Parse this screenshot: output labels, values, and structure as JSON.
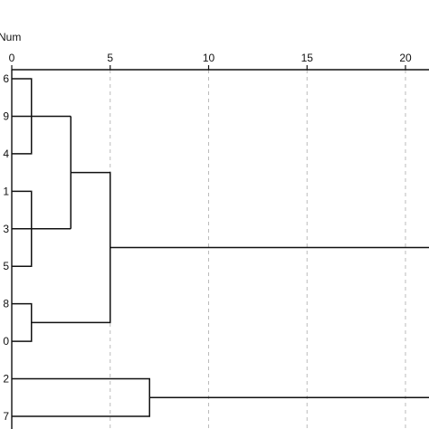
{
  "chart_data": {
    "type": "dendrogram",
    "orientation": "horizontal",
    "axis_title": "Num",
    "xlim": [
      0,
      21
    ],
    "x_ticks": [
      0,
      5,
      10,
      15,
      20
    ],
    "grid": "vertical-dashed",
    "leaves": [
      "6",
      "9",
      "4",
      "1",
      "3",
      "5",
      "8",
      "0",
      "2",
      "7"
    ],
    "merges": [
      {
        "a": "6",
        "b": "4",
        "height": 1
      },
      {
        "a": "1",
        "b": "5",
        "height": 1
      },
      {
        "a": "8",
        "b": "0",
        "height": 1
      },
      {
        "a": "9",
        "b": "6+4",
        "height": 3
      },
      {
        "a": "3",
        "b": "1+5",
        "height": 3
      },
      {
        "a": "9+6+4",
        "b": "3+1+5",
        "height": 3
      },
      {
        "a": "9+6+4+3+1+5",
        "b": "8+0",
        "height": 5
      },
      {
        "a": "2",
        "b": "7",
        "height": 7
      }
    ],
    "root_branches": [
      {
        "leaves": "6,9,4,1,3,5,8,0",
        "extends_to": 21
      },
      {
        "leaves": "2,7",
        "extends_to": 21
      }
    ]
  },
  "colors": {
    "line": "#111111",
    "grid": "#bbbbbb",
    "text": "#111111"
  }
}
